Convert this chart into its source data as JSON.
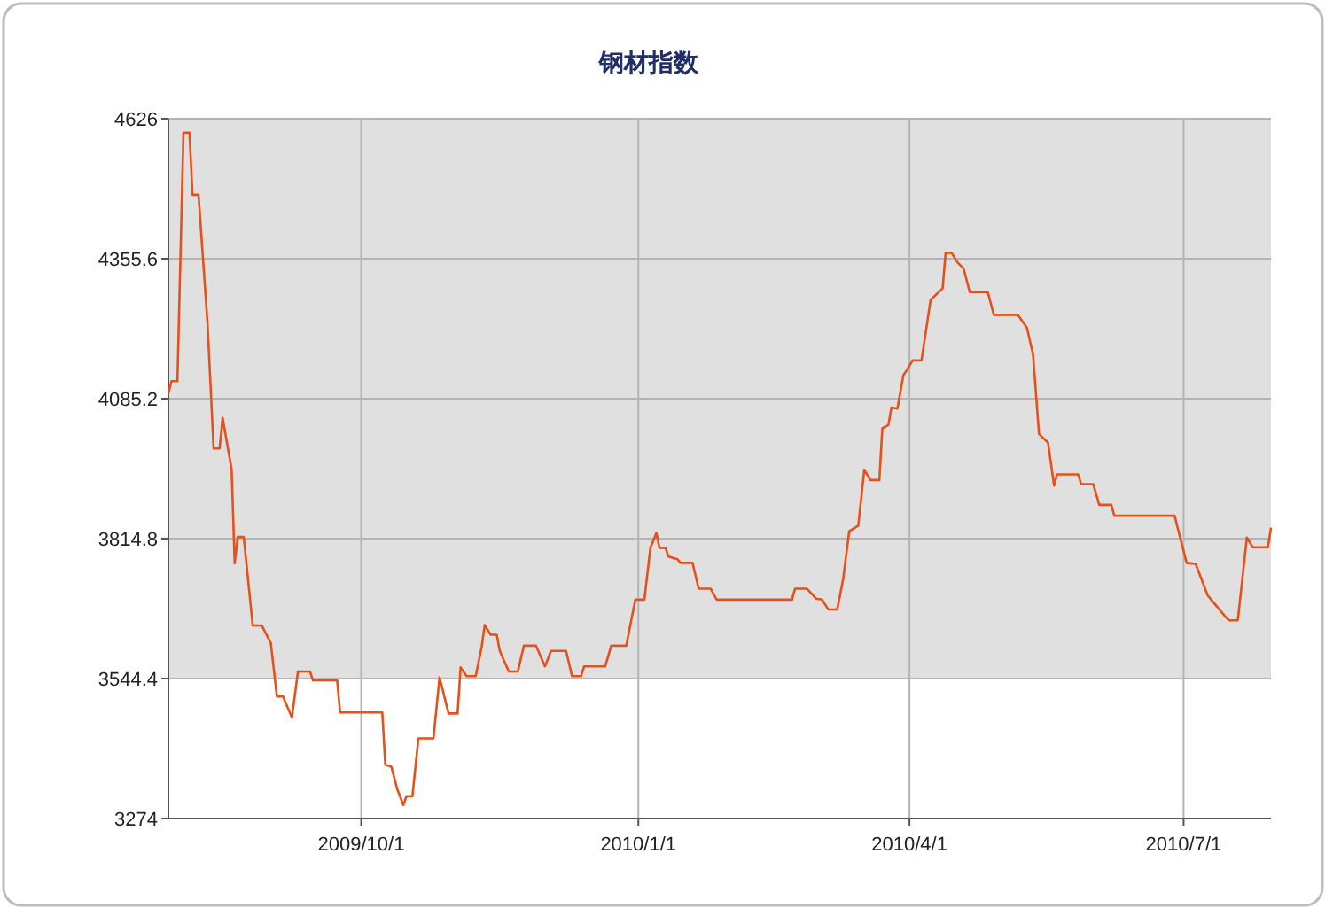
{
  "chart_data": {
    "type": "line",
    "title": "钢材指数",
    "x": [
      "2009-07-29",
      "2009-07-30",
      "2009-08-01",
      "2009-08-03",
      "2009-08-05",
      "2009-08-06",
      "2009-08-08",
      "2009-08-11",
      "2009-08-13",
      "2009-08-15",
      "2009-08-16",
      "2009-08-19",
      "2009-08-20",
      "2009-08-21",
      "2009-08-23",
      "2009-08-26",
      "2009-08-29",
      "2009-09-01",
      "2009-09-03",
      "2009-09-05",
      "2009-09-08",
      "2009-09-10",
      "2009-09-14",
      "2009-09-15",
      "2009-09-23",
      "2009-09-24",
      "2009-10-08",
      "2009-10-09",
      "2009-10-11",
      "2009-10-13",
      "2009-10-15",
      "2009-10-16",
      "2009-10-18",
      "2009-10-20",
      "2009-10-25",
      "2009-10-27",
      "2009-10-30",
      "2009-11-02",
      "2009-11-03",
      "2009-11-05",
      "2009-11-08",
      "2009-11-10",
      "2009-11-11",
      "2009-11-13",
      "2009-11-15",
      "2009-11-16",
      "2009-11-19",
      "2009-11-22",
      "2009-11-24",
      "2009-11-28",
      "2009-12-01",
      "2009-12-03",
      "2009-12-08",
      "2009-12-10",
      "2009-12-13",
      "2009-12-14",
      "2009-12-21",
      "2009-12-23",
      "2009-12-28",
      "2009-12-31",
      "2010-01-03",
      "2010-01-05",
      "2010-01-07",
      "2010-01-08",
      "2010-01-10",
      "2010-01-11",
      "2010-01-14",
      "2010-01-15",
      "2010-01-19",
      "2010-01-21",
      "2010-01-25",
      "2010-01-27",
      "2010-02-21",
      "2010-02-22",
      "2010-02-26",
      "2010-03-01",
      "2010-03-03",
      "2010-03-05",
      "2010-03-08",
      "2010-03-10",
      "2010-03-12",
      "2010-03-15",
      "2010-03-17",
      "2010-03-19",
      "2010-03-22",
      "2010-03-23",
      "2010-03-25",
      "2010-03-26",
      "2010-03-28",
      "2010-03-30",
      "2010-03-31",
      "2010-04-02",
      "2010-04-05",
      "2010-04-08",
      "2010-04-12",
      "2010-04-13",
      "2010-04-15",
      "2010-04-17",
      "2010-04-19",
      "2010-04-21",
      "2010-04-27",
      "2010-04-29",
      "2010-05-07",
      "2010-05-10",
      "2010-05-12",
      "2010-05-14",
      "2010-05-17",
      "2010-05-19",
      "2010-05-20",
      "2010-05-27",
      "2010-05-28",
      "2010-06-01",
      "2010-06-03",
      "2010-06-07",
      "2010-06-08",
      "2010-06-28",
      "2010-07-02",
      "2010-07-05",
      "2010-07-09",
      "2010-07-15",
      "2010-07-16",
      "2010-07-19",
      "2010-07-22",
      "2010-07-24",
      "2010-07-29",
      "2010-07-30"
    ],
    "series": [
      {
        "color": "#e8501a",
        "values": [
          4095,
          4119,
          4119,
          4599,
          4599,
          4479,
          4479,
          4229,
          3989,
          3989,
          4048,
          3948,
          3767,
          3818,
          3818,
          3647,
          3647,
          3613,
          3510,
          3510,
          3469,
          3558,
          3558,
          3541,
          3541,
          3479,
          3479,
          3378,
          3374,
          3330,
          3300,
          3317,
          3317,
          3429,
          3429,
          3547,
          3477,
          3477,
          3566,
          3549,
          3549,
          3606,
          3648,
          3629,
          3629,
          3598,
          3558,
          3558,
          3608,
          3608,
          3568,
          3598,
          3598,
          3549,
          3549,
          3568,
          3568,
          3608,
          3608,
          3697,
          3697,
          3797,
          3826,
          3797,
          3797,
          3780,
          3775,
          3768,
          3768,
          3718,
          3718,
          3697,
          3697,
          3718,
          3718,
          3699,
          3697,
          3678,
          3678,
          3737,
          3829,
          3840,
          3948,
          3928,
          3928,
          4028,
          4034,
          4068,
          4066,
          4131,
          4139,
          4159,
          4159,
          4276,
          4298,
          4367,
          4367,
          4348,
          4336,
          4291,
          4291,
          4247,
          4247,
          4222,
          4171,
          4017,
          4000,
          3917,
          3939,
          3939,
          3920,
          3920,
          3880,
          3880,
          3859,
          3859,
          3768,
          3766,
          3705,
          3663,
          3657,
          3657,
          3817,
          3798,
          3798,
          3836
        ]
      }
    ],
    "xlim": [
      "2009-07-29",
      "2010-07-30"
    ],
    "xticks": [
      {
        "value": "2009-10-01",
        "label": "2009/10/1"
      },
      {
        "value": "2010-01-01",
        "label": "2010/1/1"
      },
      {
        "value": "2010-04-01",
        "label": "2010/4/1"
      },
      {
        "value": "2010-07-01",
        "label": "2010/7/1"
      }
    ],
    "ylim": [
      3274,
      4626
    ],
    "yticks": [
      3274,
      3544.4,
      3814.8,
      4085.2,
      4355.6,
      4626
    ],
    "bands": [
      {
        "axis": "y",
        "from": 3544.4,
        "to": 4626,
        "color": "#d6d6d6"
      }
    ],
    "grid": true,
    "marker": "none",
    "line_style": "solid"
  }
}
